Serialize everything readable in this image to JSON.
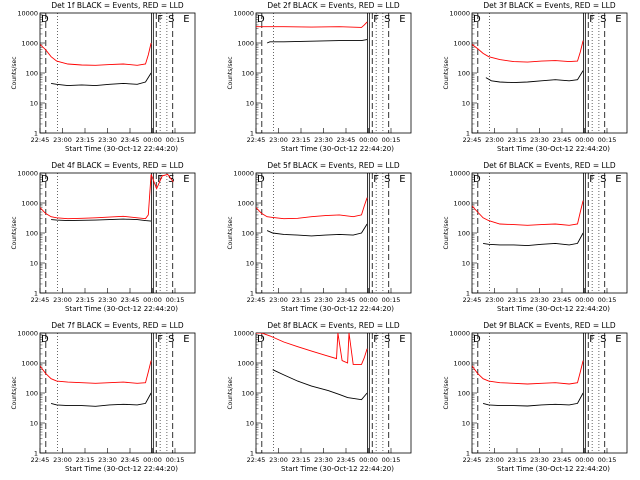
{
  "figure": {
    "x_tick_labels": [
      "22:45",
      "23:00",
      "23:15",
      "23:30",
      "23:45",
      "00:00",
      "00:15"
    ],
    "y_tick_labels": [
      "1",
      "10",
      "100",
      "1000",
      "10000"
    ],
    "ylabel": "Counts/sec",
    "xlabel": "Start Time (30-Oct-12 22:44:20)",
    "markers": [
      "D",
      "F",
      "S",
      "E"
    ],
    "colors": {
      "events": "#000000",
      "lld": "#ff0000"
    }
  },
  "chart_data": [
    {
      "type": "line",
      "title": "Det 1f BLACK = Events, RED = LLD",
      "xlabel": "Start Time (30-Oct-12 22:44:20)",
      "ylabel": "Counts/sec",
      "x_range_min": [
        0,
        96
      ],
      "ylim": [
        1,
        10000
      ],
      "yscale": "log",
      "series": [
        {
          "name": "Events",
          "color": "#000000",
          "x": [
            8,
            12,
            20,
            30,
            40,
            50,
            60,
            70,
            76,
            80
          ],
          "values": [
            45,
            42,
            38,
            40,
            38,
            42,
            45,
            42,
            50,
            100
          ]
        },
        {
          "name": "LLD",
          "color": "#ff0000",
          "x": [
            0,
            4,
            8,
            12,
            20,
            30,
            40,
            50,
            60,
            70,
            76,
            78,
            80
          ],
          "values": [
            900,
            600,
            350,
            250,
            200,
            185,
            180,
            190,
            200,
            180,
            200,
            400,
            1000
          ]
        }
      ]
    },
    {
      "type": "line",
      "title": "Det 2f BLACK = Events, RED = LLD",
      "xlabel": "Start Time (30-Oct-12 22:44:20)",
      "ylabel": "Counts/sec",
      "x_range_min": [
        0,
        96
      ],
      "ylim": [
        1,
        10000
      ],
      "yscale": "log",
      "series": [
        {
          "name": "Events",
          "color": "#000000",
          "x": [
            8,
            10,
            20,
            40,
            60,
            76,
            80
          ],
          "values": [
            1000,
            1100,
            1100,
            1150,
            1200,
            1200,
            1300
          ]
        },
        {
          "name": "LLD",
          "color": "#ff0000",
          "x": [
            0,
            8,
            20,
            40,
            60,
            76,
            78,
            80
          ],
          "values": [
            3500,
            3500,
            3500,
            3400,
            3500,
            3300,
            4000,
            5000
          ]
        }
      ]
    },
    {
      "type": "line",
      "title": "Det 3f BLACK = Events, RED = LLD",
      "xlabel": "Start Time (30-Oct-12 22:44:20)",
      "ylabel": "Counts/sec",
      "x_range_min": [
        0,
        96
      ],
      "ylim": [
        1,
        10000
      ],
      "yscale": "log",
      "series": [
        {
          "name": "Events",
          "color": "#000000",
          "x": [
            10,
            14,
            20,
            30,
            40,
            50,
            60,
            70,
            76,
            80
          ],
          "values": [
            70,
            55,
            50,
            48,
            50,
            55,
            60,
            55,
            60,
            120
          ]
        },
        {
          "name": "LLD",
          "color": "#ff0000",
          "x": [
            0,
            4,
            8,
            12,
            20,
            30,
            40,
            50,
            60,
            70,
            76,
            78,
            80
          ],
          "values": [
            900,
            650,
            450,
            350,
            280,
            240,
            230,
            250,
            260,
            240,
            250,
            500,
            1200
          ]
        }
      ]
    },
    {
      "type": "line",
      "title": "Det 4f BLACK = Events, RED = LLD",
      "xlabel": "Start Time (30-Oct-12 22:44:20)",
      "ylabel": "Counts/sec",
      "x_range_min": [
        0,
        96
      ],
      "ylim": [
        1,
        10000
      ],
      "yscale": "log",
      "series": [
        {
          "name": "Events",
          "color": "#000000",
          "x": [
            8,
            12,
            20,
            30,
            40,
            50,
            60,
            70,
            76,
            80
          ],
          "values": [
            280,
            270,
            260,
            265,
            270,
            280,
            290,
            280,
            260,
            250
          ]
        },
        {
          "name": "LLD",
          "color": "#ff0000",
          "x": [
            0,
            4,
            8,
            12,
            20,
            30,
            40,
            50,
            60,
            70,
            76,
            78,
            80,
            84,
            88,
            92,
            96
          ],
          "values": [
            700,
            450,
            350,
            320,
            300,
            310,
            320,
            340,
            360,
            320,
            300,
            400,
            9000,
            3000,
            8000,
            9000,
            5000
          ]
        }
      ]
    },
    {
      "type": "line",
      "title": "Det 5f BLACK = Events, RED = LLD",
      "xlabel": "Start Time (30-Oct-12 22:44:20)",
      "ylabel": "Counts/sec",
      "x_range_min": [
        0,
        96
      ],
      "ylim": [
        1,
        10000
      ],
      "yscale": "log",
      "series": [
        {
          "name": "Events",
          "color": "#000000",
          "x": [
            8,
            12,
            20,
            30,
            40,
            50,
            60,
            70,
            76,
            80
          ],
          "values": [
            120,
            100,
            90,
            85,
            80,
            85,
            90,
            85,
            100,
            200
          ]
        },
        {
          "name": "LLD",
          "color": "#ff0000",
          "x": [
            0,
            4,
            8,
            12,
            20,
            30,
            40,
            50,
            60,
            70,
            76,
            78,
            80
          ],
          "values": [
            700,
            450,
            350,
            330,
            300,
            310,
            350,
            380,
            400,
            350,
            400,
            800,
            1500
          ]
        }
      ]
    },
    {
      "type": "line",
      "title": "Det 6f BLACK = Events, RED = LLD",
      "xlabel": "Start Time (30-Oct-12 22:44:20)",
      "ylabel": "Counts/sec",
      "x_range_min": [
        0,
        96
      ],
      "ylim": [
        1,
        10000
      ],
      "yscale": "log",
      "series": [
        {
          "name": "Events",
          "color": "#000000",
          "x": [
            8,
            12,
            20,
            30,
            40,
            50,
            60,
            70,
            76,
            80
          ],
          "values": [
            45,
            42,
            40,
            40,
            38,
            42,
            45,
            40,
            45,
            100
          ]
        },
        {
          "name": "LLD",
          "color": "#ff0000",
          "x": [
            0,
            4,
            8,
            12,
            20,
            30,
            40,
            50,
            60,
            70,
            76,
            78,
            80
          ],
          "values": [
            800,
            500,
            320,
            260,
            200,
            190,
            180,
            190,
            200,
            180,
            200,
            500,
            1200
          ]
        }
      ]
    },
    {
      "type": "line",
      "title": "Det 7f BLACK = Events, RED = LLD",
      "xlabel": "Start Time (30-Oct-12 22:44:20)",
      "ylabel": "Counts/sec",
      "x_range_min": [
        0,
        96
      ],
      "ylim": [
        1,
        10000
      ],
      "yscale": "log",
      "series": [
        {
          "name": "Events",
          "color": "#000000",
          "x": [
            8,
            12,
            20,
            30,
            40,
            50,
            60,
            70,
            76,
            80
          ],
          "values": [
            45,
            40,
            38,
            38,
            36,
            40,
            42,
            40,
            45,
            100
          ]
        },
        {
          "name": "LLD",
          "color": "#ff0000",
          "x": [
            0,
            4,
            8,
            12,
            20,
            30,
            40,
            50,
            60,
            70,
            76,
            78,
            80
          ],
          "values": [
            800,
            450,
            300,
            250,
            230,
            220,
            210,
            220,
            230,
            210,
            220,
            500,
            1200
          ]
        }
      ]
    },
    {
      "type": "line",
      "title": "Det 8f BLACK = Events, RED = LLD",
      "xlabel": "Start Time (30-Oct-12 22:44:20)",
      "ylabel": "Counts/sec",
      "x_range_min": [
        0,
        96
      ],
      "ylim": [
        1,
        10000
      ],
      "yscale": "log",
      "series": [
        {
          "name": "Events",
          "color": "#000000",
          "x": [
            12,
            20,
            30,
            40,
            52,
            60,
            66,
            76,
            80
          ],
          "values": [
            600,
            400,
            250,
            170,
            120,
            90,
            70,
            60,
            100
          ]
        },
        {
          "name": "LLD",
          "color": "#ff0000",
          "x": [
            0,
            4,
            10,
            20,
            30,
            40,
            50,
            58,
            59,
            62,
            64,
            66,
            67,
            70,
            76,
            78,
            80
          ],
          "values": [
            10000,
            10000,
            8000,
            5000,
            3500,
            2500,
            1800,
            1400,
            10000,
            1200,
            1100,
            1000,
            10000,
            900,
            900,
            1500,
            3000
          ]
        }
      ]
    },
    {
      "type": "line",
      "title": "Det 9f BLACK = Events, RED = LLD",
      "xlabel": "Start Time (30-Oct-12 22:44:20)",
      "ylabel": "Counts/sec",
      "x_range_min": [
        0,
        96
      ],
      "ylim": [
        1,
        10000
      ],
      "yscale": "log",
      "series": [
        {
          "name": "Events",
          "color": "#000000",
          "x": [
            8,
            12,
            20,
            30,
            40,
            50,
            60,
            70,
            76,
            80
          ],
          "values": [
            45,
            40,
            38,
            38,
            37,
            40,
            42,
            40,
            45,
            100
          ]
        },
        {
          "name": "LLD",
          "color": "#ff0000",
          "x": [
            0,
            4,
            8,
            12,
            20,
            30,
            40,
            50,
            60,
            70,
            76,
            78,
            80
          ],
          "values": [
            800,
            450,
            300,
            250,
            220,
            210,
            200,
            210,
            220,
            200,
            220,
            500,
            1200
          ]
        }
      ]
    }
  ]
}
